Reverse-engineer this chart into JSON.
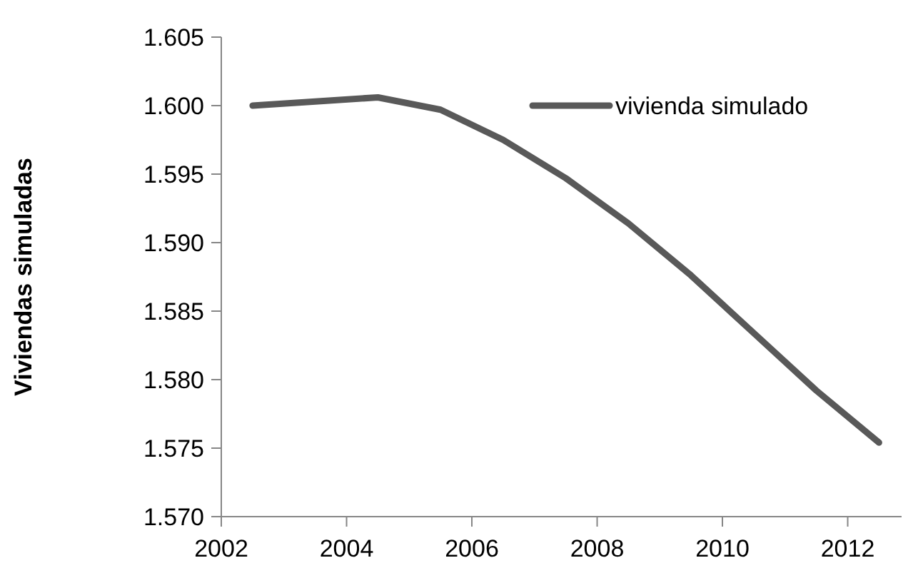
{
  "chart_data": {
    "type": "line",
    "ylabel": "Viviendas simuladas",
    "x": [
      2002.5,
      2003.5,
      2004.5,
      2005.5,
      2006.5,
      2007.5,
      2008.5,
      2009.5,
      2010.5,
      2011.5,
      2012.5
    ],
    "series": [
      {
        "name": "vivienda simulado",
        "color": "#595959",
        "values": [
          1.6,
          1.6003,
          1.6006,
          1.5997,
          1.5975,
          1.5947,
          1.5914,
          1.5876,
          1.5834,
          1.5792,
          1.5754
        ]
      }
    ],
    "xlim": [
      2002,
      2012.86
    ],
    "xticks": [
      2002,
      2004,
      2006,
      2008,
      2010,
      2012
    ],
    "ylim": [
      1.57,
      1.605
    ],
    "yticks": [
      {
        "value": 1.57,
        "label": "1.570"
      },
      1.575,
      {
        "value": 1.58,
        "label": "1.580"
      },
      1.585,
      {
        "value": 1.59,
        "label": "1.590"
      },
      1.595,
      {
        "value": 1.6,
        "label": "1.600"
      },
      1.605
    ],
    "grid": false,
    "legend": "top right",
    "marker": "none",
    "line_style": "solid"
  }
}
